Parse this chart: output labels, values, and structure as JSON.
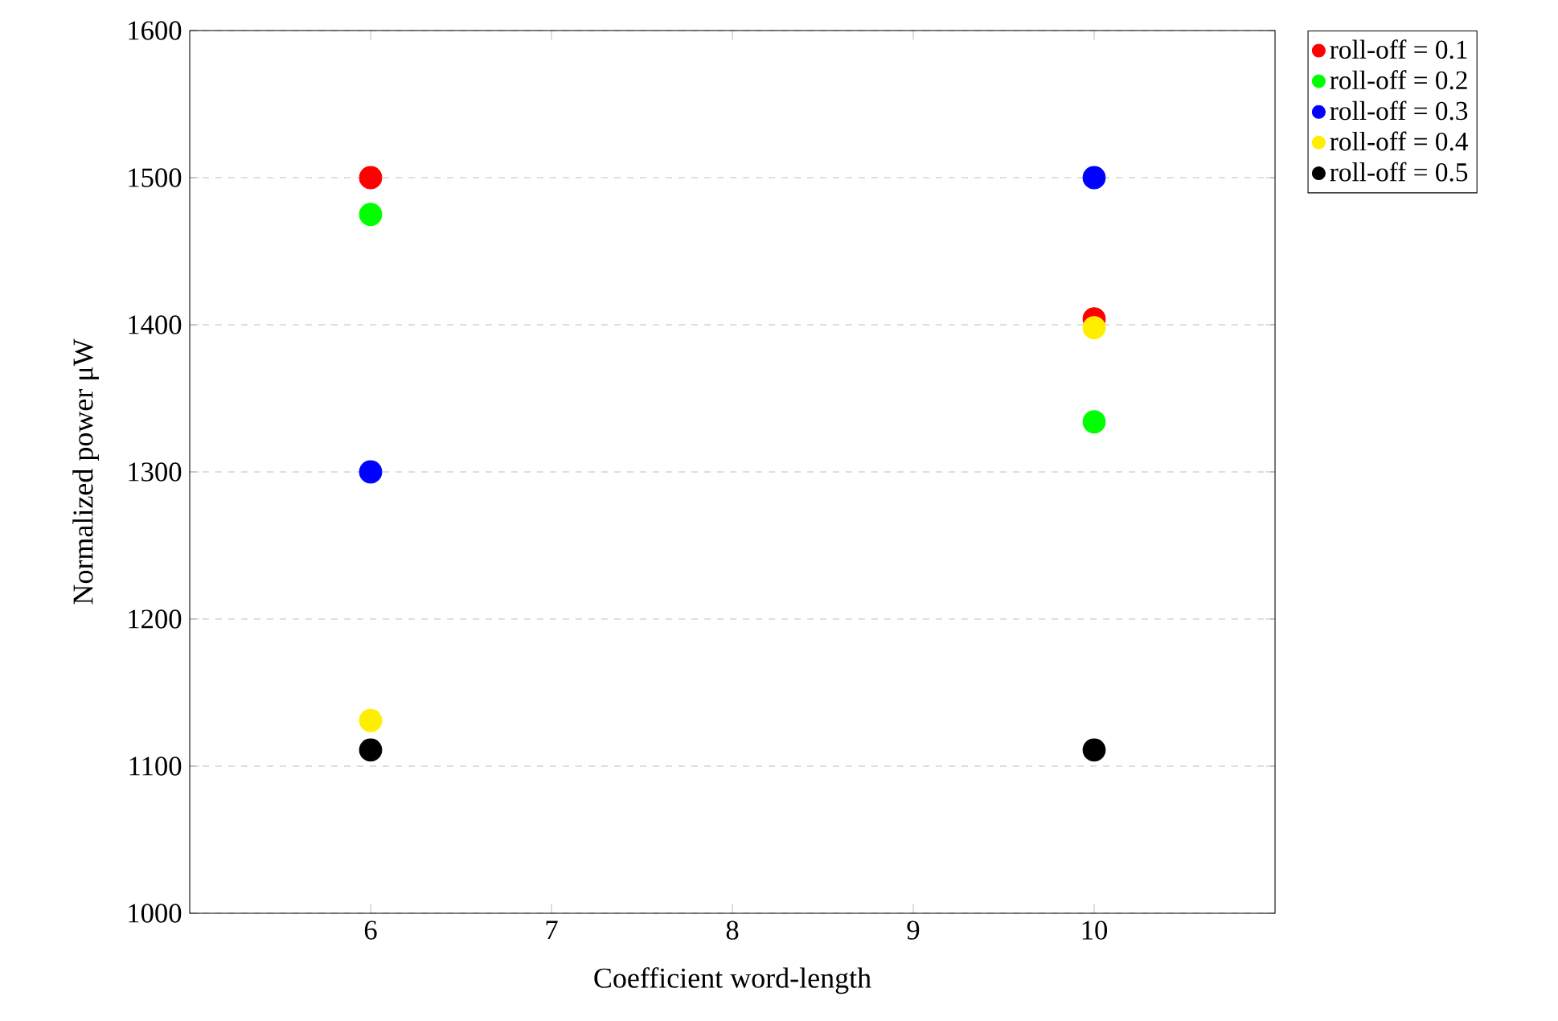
{
  "chart_data": {
    "type": "scatter",
    "xlabel": "Coefficient word-length",
    "ylabel": "Normalized power μW",
    "xlim": [
      5,
      11
    ],
    "ylim": [
      1000,
      1600
    ],
    "xticks": [
      6,
      7,
      8,
      9,
      10
    ],
    "yticks": [
      1000,
      1100,
      1200,
      1300,
      1400,
      1500,
      1600
    ],
    "grid": "y",
    "legend": "top right",
    "marker": "circle",
    "x": [
      6,
      10
    ],
    "series": [
      {
        "name": "roll-off = 0.1",
        "color": "#ff0000",
        "values": [
          1500,
          1404
        ]
      },
      {
        "name": "roll-off = 0.2",
        "color": "#00ff00",
        "values": [
          1475,
          1334
        ]
      },
      {
        "name": "roll-off = 0.3",
        "color": "#0000ff",
        "values": [
          1300,
          1500
        ]
      },
      {
        "name": "roll-off = 0.4",
        "color": "#ffee00",
        "values": [
          1131,
          1398
        ]
      },
      {
        "name": "roll-off = 0.5",
        "color": "#000000",
        "values": [
          1111,
          1111
        ]
      }
    ]
  }
}
